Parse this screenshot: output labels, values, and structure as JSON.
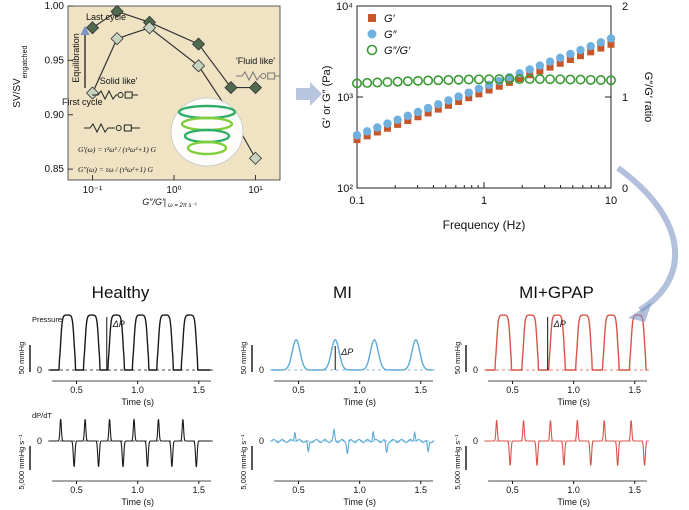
{
  "colors": {
    "panel_bg": "#efe3c4",
    "dark_diamond": "#4f6a4e",
    "light_diamond": "#c6d3bf",
    "gprime": "#c7572a",
    "gdouble": "#6fb0de",
    "ratio": "#3a9a35",
    "healthy": "#1a1a1a",
    "mi": "#5aa9d8",
    "gpap": "#d9544b",
    "arrow": "#7e96c4"
  },
  "icons": [
    "blue-curved-arrow-icon",
    "blue-right-arrow-icon",
    "heart-hydrogel-illustration-icon",
    "spring-dashpot-icon"
  ],
  "chart_data": [
    {
      "type": "scatter",
      "ylabel": "SV/SV",
      "ylabel_sub": "engatched",
      "xlabel_main": "G″/G′|",
      "xlabel_sub": "ω = 2π s⁻¹",
      "xscale": "log",
      "xlim": [
        0.05,
        20
      ],
      "ylim": [
        0.84,
        1.0
      ],
      "xticks": [
        "10⁻¹",
        "10⁰",
        "10¹"
      ],
      "yticks": [
        "0.85",
        "0.90",
        "0.95",
        "1.00"
      ],
      "annotations": {
        "last_cycle": "Last cycle",
        "first_cycle": "First cycle",
        "equilibration": "Equilibration",
        "solid_like": "'Solid like'",
        "fluid_like": "'Fluid like'",
        "eq1": "G′(ω) = τ²ω² / (τ²ω²+1) G",
        "eq2": "G″(ω) = τω / (τ²ω²+1) G"
      },
      "series": [
        {
          "marker": "dark-diamond",
          "x": [
            0.1,
            0.2,
            0.5,
            2,
            5,
            10
          ],
          "y": [
            0.98,
            0.995,
            0.985,
            0.965,
            0.925,
            0.925
          ]
        },
        {
          "marker": "light-diamond",
          "x": [
            0.1,
            0.2,
            0.5,
            2,
            5,
            10
          ],
          "y": [
            0.92,
            0.97,
            0.98,
            0.945,
            0.9,
            0.86
          ]
        }
      ]
    },
    {
      "type": "scatter",
      "xlabel": "Frequency (Hz)",
      "ylabel_left": "G′ or G″ (Pa)",
      "ylabel_right": "G″/G′ ratio",
      "xscale": "log",
      "yscale_left": "log",
      "xlim": [
        0.1,
        10
      ],
      "ylim_left": [
        100,
        10000
      ],
      "ylim_right": [
        0,
        2
      ],
      "xticks": [
        "0.1",
        "1",
        "10"
      ],
      "yticks_left": [
        "10²",
        "10³",
        "10⁴"
      ],
      "yticks_right": [
        "0",
        "1",
        "2"
      ],
      "legend_position": "top-left",
      "series": [
        {
          "name": "G′",
          "axis": "left",
          "marker": "square",
          "x_start": 0.1,
          "x_end": 10,
          "y_start": 340,
          "y_end": 3800,
          "n": 26
        },
        {
          "name": "G″",
          "axis": "left",
          "marker": "circle",
          "x_start": 0.1,
          "x_end": 10,
          "y_start": 380,
          "y_end": 4400,
          "n": 26
        },
        {
          "name": "G″/G′",
          "axis": "right",
          "marker": "open-circle",
          "x_start": 0.1,
          "x_end": 10,
          "y_start": 1.15,
          "y_end": 1.18,
          "n": 26
        }
      ]
    },
    {
      "type": "line",
      "title": "Healthy",
      "pressure_label": "Pressure",
      "dpdt_label": "dP/dT",
      "scale_pressure": "50 mmHg",
      "scale_dpdt": "5,000 mmHg s⁻¹",
      "delta": "ΔP",
      "xlabel": "Time (s)",
      "xticks": [
        "0.5",
        "1.0",
        "1.5"
      ],
      "zero_label": "0",
      "beats_s": [
        0.38,
        0.58,
        0.78,
        0.98,
        1.18,
        1.38
      ],
      "amplitude": 1.0
    },
    {
      "type": "line",
      "title": "MI",
      "scale_pressure": "50 mmHg",
      "scale_dpdt": "5,000 mmHg s⁻¹",
      "delta": "ΔP",
      "xlabel": "Time (s)",
      "xticks": [
        "0.5",
        "1.0",
        "1.5"
      ],
      "zero_label": "0",
      "beats_s": [
        0.48,
        0.8,
        1.12,
        1.46
      ],
      "amplitude": 0.45
    },
    {
      "type": "line",
      "title": "MI+GPAP",
      "scale_pressure": "50 mmHg",
      "scale_dpdt": "5,000 mmHg s⁻¹",
      "delta": "ΔP",
      "xlabel": "Time (s)",
      "xticks": [
        "0.5",
        "1.0",
        "1.5"
      ],
      "zero_label": "0",
      "beats_s": [
        0.38,
        0.6,
        0.82,
        1.04,
        1.26,
        1.48
      ],
      "amplitude": 0.95
    }
  ]
}
